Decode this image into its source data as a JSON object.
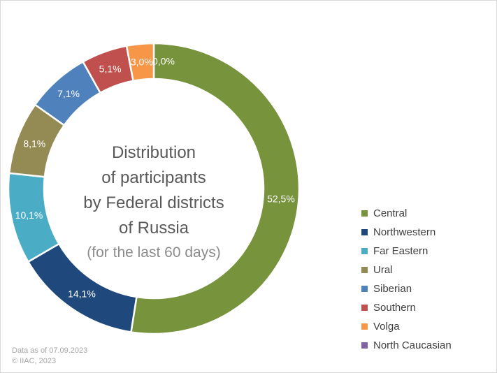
{
  "chart_data": {
    "type": "pie",
    "title_lines": [
      "Distribution",
      "of participants",
      "by Federal districts",
      "of Russia"
    ],
    "subtitle": "(for the last 60 days)",
    "legend_position": "right",
    "slices": [
      {
        "label": "Central",
        "value": 52.5,
        "display": "52,5%",
        "color": "#77933c"
      },
      {
        "label": "Northwestern",
        "value": 14.1,
        "display": "14,1%",
        "color": "#1f497d"
      },
      {
        "label": "Far Eastern",
        "value": 10.1,
        "display": "10,1%",
        "color": "#4bacc6"
      },
      {
        "label": "Ural",
        "value": 8.1,
        "display": "8,1%",
        "color": "#948a54"
      },
      {
        "label": "Siberian",
        "value": 7.1,
        "display": "7,1%",
        "color": "#4f81bd"
      },
      {
        "label": "Southern",
        "value": 5.1,
        "display": "5,1%",
        "color": "#c0504d"
      },
      {
        "label": "Volga",
        "value": 3.0,
        "display": "3,0%",
        "color": "#f79646"
      },
      {
        "label": "North Caucasian",
        "value": 0.0,
        "display": "0,0%",
        "color": "#8064a2"
      }
    ]
  },
  "footnote": {
    "date_line": "Data as of 07.09.2023",
    "copyright_line": "© IIAC, 2023"
  }
}
